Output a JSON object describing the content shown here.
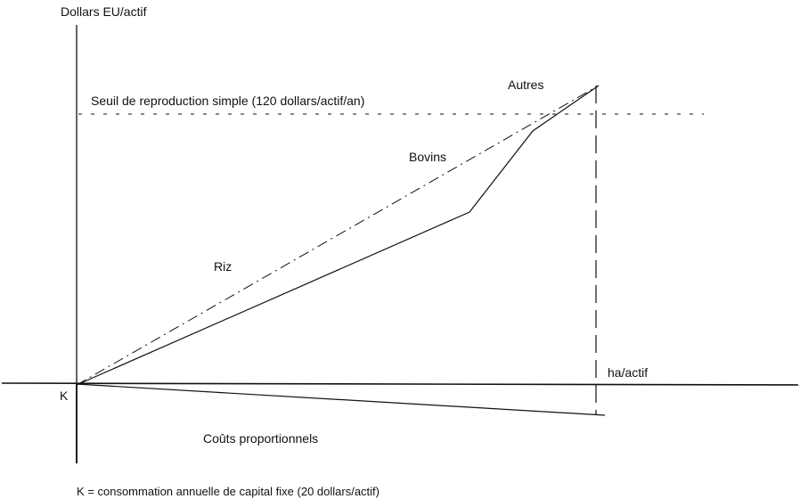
{
  "y_axis_label": "Dollars EU/actif",
  "x_axis_label": "ha/actif",
  "threshold_label": "Seuil de reproduction simple (120 dollars/actif/an)",
  "origin_label": "K",
  "line_labels": {
    "riz": "Riz",
    "bovins": "Bovins",
    "autres": "Autres",
    "couts": "Coûts proportionnels"
  },
  "footnote": "K = consommation annuelle de capital fixe (20 dollars/actif)",
  "colors": {
    "ink": "#111111",
    "background": "#ffffff"
  }
}
